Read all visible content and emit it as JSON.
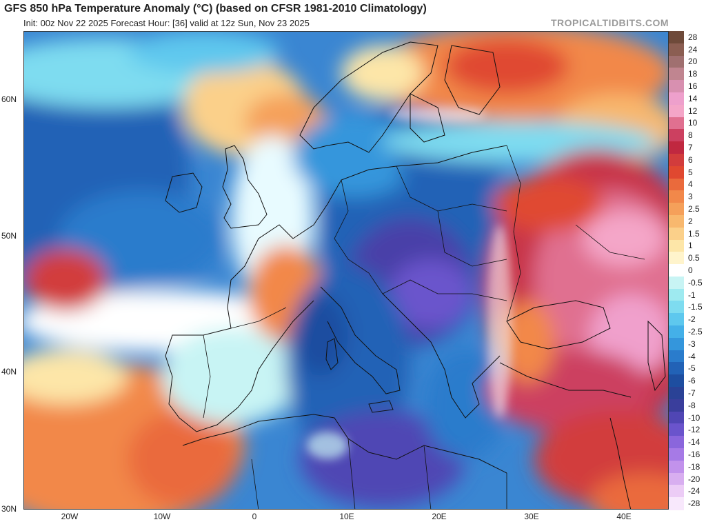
{
  "header": {
    "title": "GFS 850 hPa Temperature Anomaly (°C) (based on CFSR 1981-2010 Climatology)",
    "subtitle": "Init: 00z Nov 22 2025   Forecast Hour: [36]   valid at 12z Sun, Nov 23 2025",
    "brand": "TROPICALTIDBITS.COM"
  },
  "axes": {
    "lat_labels": [
      "60N",
      "50N",
      "40N",
      "30N"
    ],
    "lon_labels": [
      "20W",
      "10W",
      "0",
      "10E",
      "20E",
      "30E",
      "40E"
    ]
  },
  "colorbar": {
    "levels": [
      {
        "label": "28",
        "color": "#6e4a3a"
      },
      {
        "label": "24",
        "color": "#8b5e52"
      },
      {
        "label": "20",
        "color": "#a07070"
      },
      {
        "label": "18",
        "color": "#c08590"
      },
      {
        "label": "16",
        "color": "#d890b0"
      },
      {
        "label": "14",
        "color": "#eea0cc"
      },
      {
        "label": "12",
        "color": "#f4a6c8"
      },
      {
        "label": "10",
        "color": "#e07090"
      },
      {
        "label": "8",
        "color": "#cc4060"
      },
      {
        "label": "7",
        "color": "#c02840"
      },
      {
        "label": "6",
        "color": "#d23c3c"
      },
      {
        "label": "5",
        "color": "#e04830"
      },
      {
        "label": "4",
        "color": "#ea6a3c"
      },
      {
        "label": "3",
        "color": "#f2884a"
      },
      {
        "label": "2.5",
        "color": "#f5a05a"
      },
      {
        "label": "2",
        "color": "#f8b86e"
      },
      {
        "label": "1.5",
        "color": "#fbd08a"
      },
      {
        "label": "1",
        "color": "#fde6a8"
      },
      {
        "label": "0.5",
        "color": "#fff4cc"
      },
      {
        "label": "0",
        "color": "#ffffff"
      },
      {
        "label": "-0.5",
        "color": "#c8f4f4"
      },
      {
        "label": "-1",
        "color": "#9eeaf0"
      },
      {
        "label": "-1.5",
        "color": "#7edcf0"
      },
      {
        "label": "-2",
        "color": "#5ec8ee"
      },
      {
        "label": "-2.5",
        "color": "#44b0e8"
      },
      {
        "label": "-3",
        "color": "#3496dc"
      },
      {
        "label": "-4",
        "color": "#2a7ccc"
      },
      {
        "label": "-5",
        "color": "#2262b6"
      },
      {
        "label": "-6",
        "color": "#1e4ea0"
      },
      {
        "label": "-7",
        "color": "#2a4296"
      },
      {
        "label": "-8",
        "color": "#3a3e9c"
      },
      {
        "label": "-10",
        "color": "#5046b4"
      },
      {
        "label": "-12",
        "color": "#6a54cc"
      },
      {
        "label": "-14",
        "color": "#8a66dc"
      },
      {
        "label": "-16",
        "color": "#a67ae6"
      },
      {
        "label": "-18",
        "color": "#c292ec"
      },
      {
        "label": "-20",
        "color": "#d8aef0"
      },
      {
        "label": "-24",
        "color": "#ecccf6"
      },
      {
        "label": "-28",
        "color": "#f8e8fc"
      }
    ]
  },
  "colors": {
    "ocean_blue": "#2a6cc0",
    "cold_core": "#4a3fa8",
    "warm_east": "#c8344a",
    "pink_max": "#f0a0cc",
    "orange": "#f0904c",
    "white_zero": "#ffffff",
    "cyan": "#7edcf0",
    "border": "#111111"
  }
}
